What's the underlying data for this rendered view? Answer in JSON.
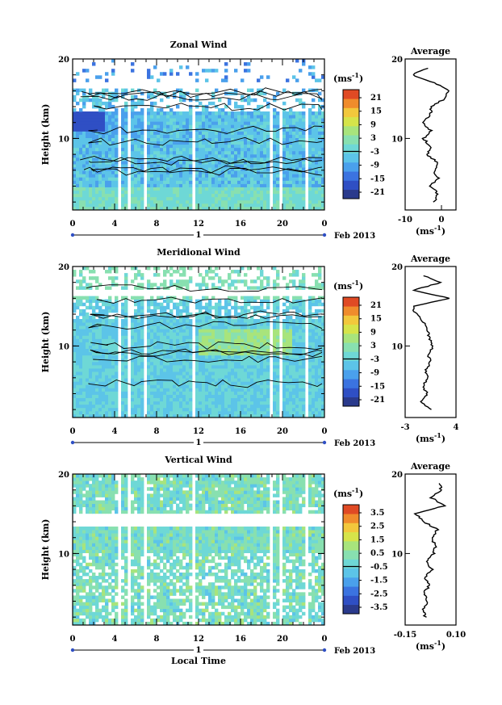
{
  "units_label": "(ms",
  "units_exp": "-1",
  "date_label": "Feb 2013",
  "day_marker": "1",
  "xlabel_bottom": "Local Time",
  "panels": [
    {
      "title": "Zonal Wind",
      "ylabel": "Height (km)",
      "yticks": [
        "20",
        "10"
      ],
      "xticks": [
        "0",
        "4",
        "8",
        "12",
        "16",
        "20",
        "0"
      ],
      "colorbar_ticks": [
        "21",
        "15",
        "9",
        "3",
        "-3",
        "-9",
        "-15",
        "-21"
      ],
      "avg_title": "Average",
      "avg_xticks": [
        "-10",
        "0"
      ],
      "avg_yticks": [
        "20",
        "10"
      ],
      "avg_xlabel_base": "(ms",
      "avg_xlabel_exp": "-1"
    },
    {
      "title": "Meridional Wind",
      "ylabel": "Height (km)",
      "yticks": [
        "20",
        "10"
      ],
      "xticks": [
        "0",
        "4",
        "8",
        "12",
        "16",
        "20",
        "0"
      ],
      "colorbar_ticks": [
        "21",
        "15",
        "9",
        "3",
        "-3",
        "-9",
        "-15",
        "-21"
      ],
      "avg_title": "Average",
      "avg_xticks": [
        "-3",
        "4"
      ],
      "avg_yticks": [
        "20",
        "10"
      ],
      "avg_xlabel_base": "(ms",
      "avg_xlabel_exp": "-1"
    },
    {
      "title": "Vertical Wind",
      "ylabel": "Height (km)",
      "yticks": [
        "20",
        "10"
      ],
      "xticks": [
        "0",
        "4",
        "8",
        "12",
        "16",
        "20",
        "0"
      ],
      "colorbar_ticks": [
        "3.5",
        "2.5",
        "1.5",
        "0.5",
        "-0.5",
        "-1.5",
        "-2.5",
        "-3.5"
      ],
      "avg_title": "Average",
      "avg_xticks": [
        "-0.15",
        "0.10"
      ],
      "avg_yticks": [
        "20",
        "10"
      ],
      "avg_xlabel_base": "(ms",
      "avg_xlabel_exp": "-1"
    }
  ],
  "chart_data": [
    {
      "type": "heatmap",
      "title": "Zonal Wind",
      "xlabel": "",
      "ylabel": "Height (km)",
      "x_range_hours": [
        0,
        24
      ],
      "ylim": [
        1,
        20
      ],
      "color_range": [
        -24,
        24
      ],
      "gap_hours": [
        [
          4.3,
          4.7
        ],
        [
          5.3,
          5.6
        ],
        [
          6.9,
          7.1
        ],
        [
          11.5,
          11.8
        ],
        [
          18.8,
          19.0
        ],
        [
          19.8,
          20.1
        ],
        [
          22.3,
          22.5
        ]
      ],
      "avg_profile": {
        "xlim": [
          -10,
          4
        ],
        "heights": [
          2,
          3,
          4,
          5,
          6,
          7,
          8,
          9,
          10,
          11,
          12,
          13,
          14,
          15,
          16,
          17,
          18,
          19
        ],
        "values": [
          -2,
          -1,
          -3,
          -1,
          -2,
          -1,
          -4,
          -3,
          -5,
          -3,
          -5,
          -3,
          -3,
          1,
          2,
          -2,
          -8,
          -3
        ]
      }
    },
    {
      "type": "heatmap",
      "title": "Meridional Wind",
      "xlabel": "",
      "ylabel": "Height (km)",
      "x_range_hours": [
        0,
        24
      ],
      "ylim": [
        1,
        20
      ],
      "color_range": [
        -24,
        24
      ],
      "gap_hours": [
        [
          4.3,
          4.7
        ],
        [
          5.3,
          5.6
        ],
        [
          6.9,
          7.1
        ],
        [
          11.5,
          11.8
        ],
        [
          18.8,
          19.0
        ],
        [
          19.8,
          20.1
        ],
        [
          22.3,
          22.5
        ]
      ],
      "avg_profile": {
        "xlim": [
          -3,
          4
        ],
        "heights": [
          2,
          3,
          4,
          5,
          6,
          7,
          8,
          9,
          10,
          11,
          12,
          13,
          14,
          15,
          16,
          17,
          18,
          19
        ],
        "values": [
          0.5,
          -1,
          0,
          -0.5,
          0.3,
          -0.2,
          0.5,
          0.2,
          0.8,
          0.4,
          0,
          -0.5,
          -1.5,
          -2,
          3,
          -2,
          2,
          -1
        ]
      }
    },
    {
      "type": "heatmap",
      "title": "Vertical Wind",
      "xlabel": "Local Time",
      "ylabel": "Height (km)",
      "x_range_hours": [
        0,
        24
      ],
      "ylim": [
        1,
        20
      ],
      "color_range": [
        -4,
        4
      ],
      "gap_hours": [
        [
          4.3,
          4.7
        ],
        [
          5.3,
          5.6
        ],
        [
          6.9,
          7.1
        ],
        [
          11.5,
          11.8
        ],
        [
          18.8,
          19.0
        ],
        [
          19.8,
          20.1
        ],
        [
          22.3,
          22.5
        ]
      ],
      "avg_profile": {
        "xlim": [
          -0.15,
          0.1
        ],
        "heights": [
          2,
          3,
          4,
          5,
          6,
          7,
          8,
          9,
          10,
          11,
          12,
          13,
          14,
          15,
          16,
          17,
          18,
          19
        ],
        "values": [
          -0.05,
          -0.06,
          -0.04,
          -0.06,
          -0.03,
          -0.05,
          -0.02,
          -0.04,
          -0.01,
          0.0,
          -0.02,
          0.01,
          -0.06,
          -0.1,
          0.04,
          -0.02,
          0.03,
          0.01
        ]
      }
    }
  ]
}
